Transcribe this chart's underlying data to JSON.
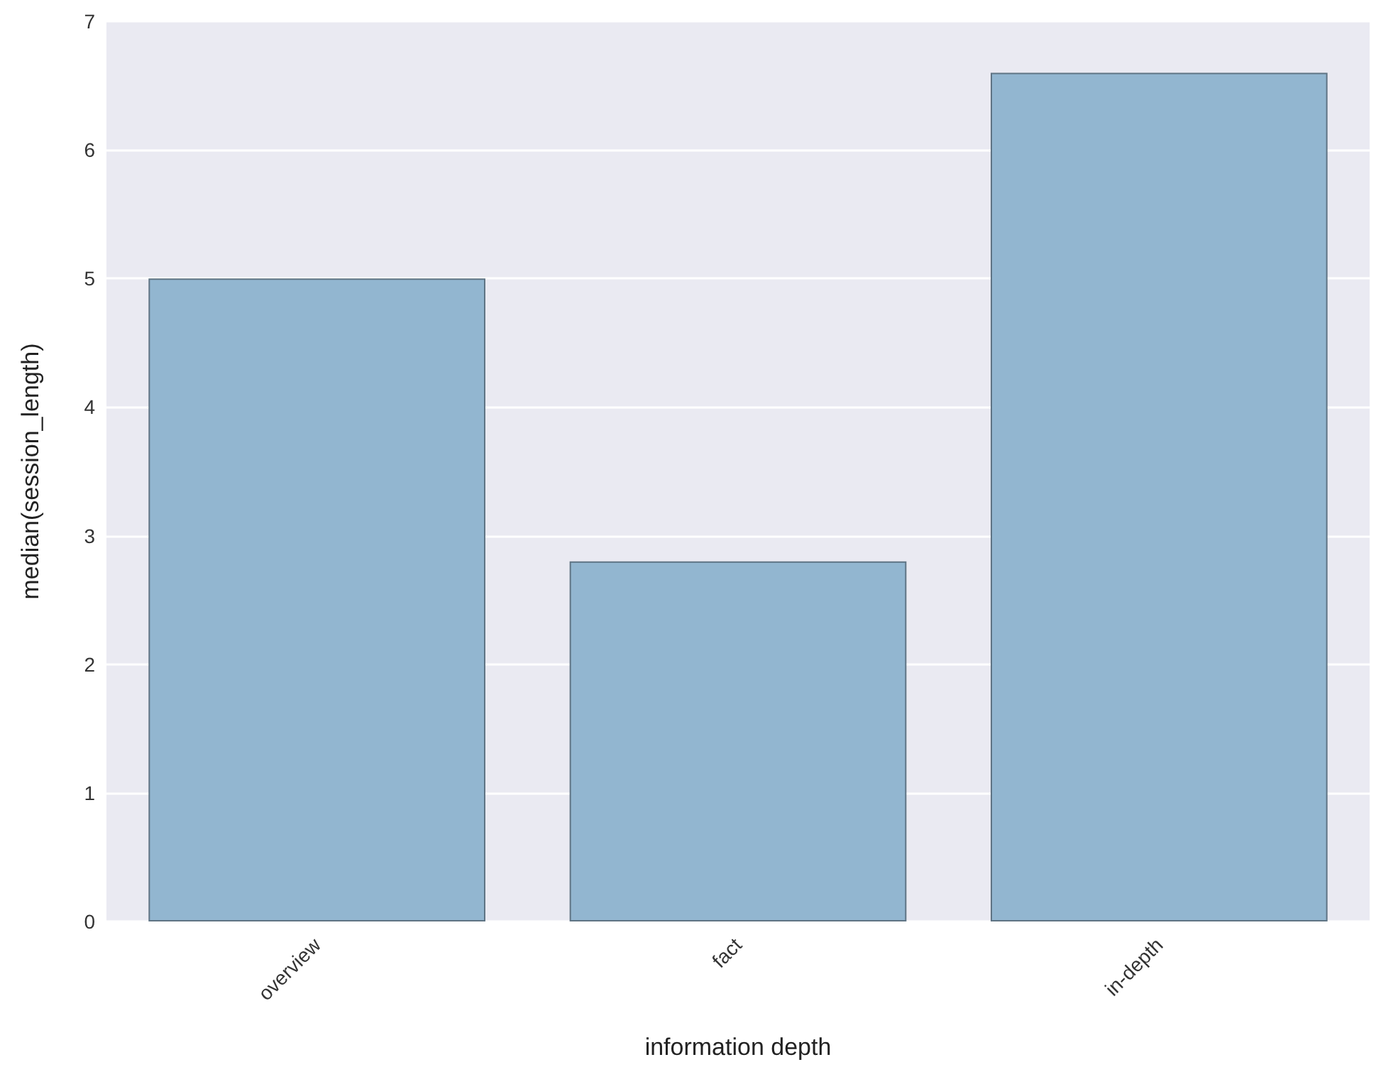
{
  "chart_data": {
    "type": "bar",
    "xlabel": "information depth",
    "ylabel": "median(session_length)",
    "categories": [
      "overview",
      "fact",
      "in-depth"
    ],
    "values": [
      5.0,
      2.8,
      6.6
    ],
    "color": "#92b6d0",
    "ylim": [
      0,
      7
    ],
    "yticks": [
      0,
      1,
      2,
      3,
      4,
      5,
      6,
      7
    ],
    "grid": "y"
  }
}
